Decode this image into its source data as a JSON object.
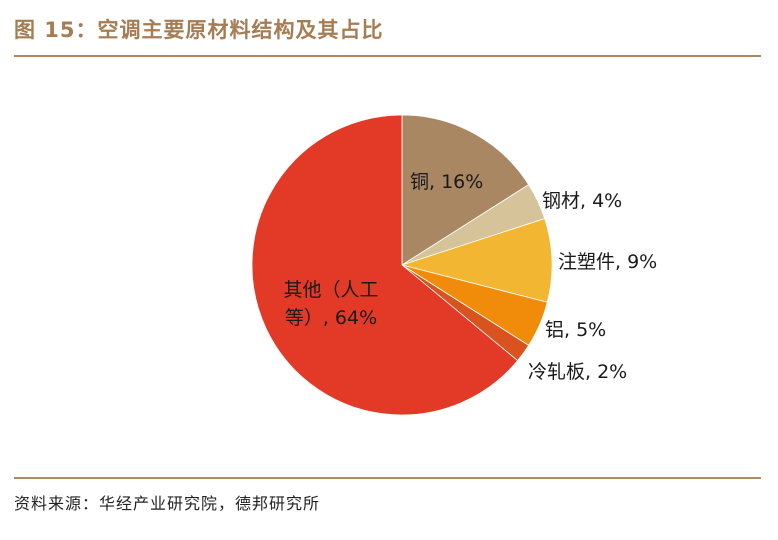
{
  "figure": {
    "title": "图 15：空调主要原材料结构及其占比",
    "source": "资料来源：华经产业研究院，德邦研究所"
  },
  "chart_data": {
    "type": "pie",
    "title": "",
    "slices": [
      {
        "label": "铜, 16%",
        "value": 16,
        "color": "#A88762"
      },
      {
        "label": "钢材, 4%",
        "value": 4,
        "color": "#D6C39A"
      },
      {
        "label": "注塑件, 9%",
        "value": 9,
        "color": "#F3B632"
      },
      {
        "label": "铝, 5%",
        "value": 5,
        "color": "#F08C0A"
      },
      {
        "label": "冷轧板, 2%",
        "value": 2,
        "color": "#D9531E"
      },
      {
        "label": "其他（人工等）, 64%",
        "label_lines": [
          "其他（人工",
          "等）, 64%"
        ],
        "value": 64,
        "color": "#E23A27"
      }
    ]
  }
}
